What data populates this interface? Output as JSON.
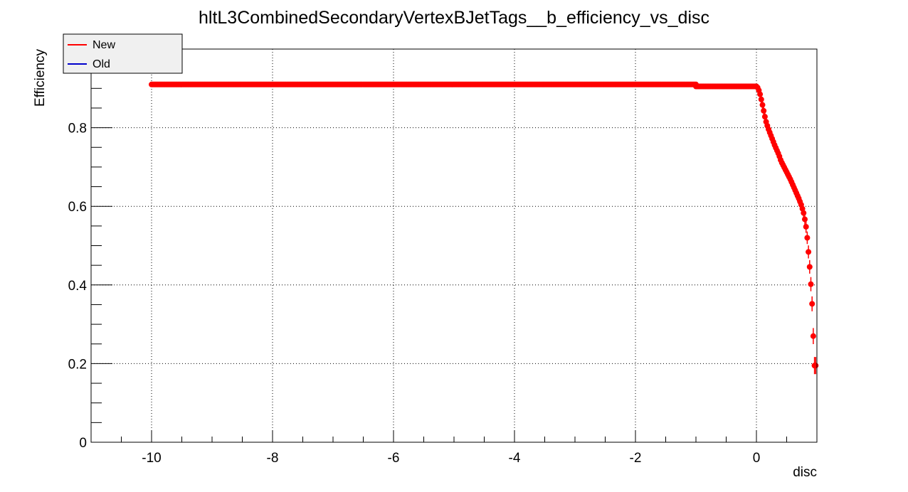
{
  "chart_data": {
    "type": "scatter",
    "title": "hltL3CombinedSecondaryVertexBJetTags__b_efficiency_vs_disc",
    "xlabel": "disc",
    "ylabel": "Efficiency",
    "xlim": [
      -11,
      1
    ],
    "ylim": [
      0,
      1
    ],
    "xticks": [
      -10,
      -8,
      -6,
      -4,
      -2,
      0
    ],
    "xtick_labels": [
      "-10",
      "-8",
      "-6",
      "-4",
      "-2",
      "0"
    ],
    "yticks": [
      0,
      0.2,
      0.4,
      0.6,
      0.8
    ],
    "ytick_labels": [
      "0",
      "0.2",
      "0.4",
      "0.6",
      "0.8"
    ],
    "grid": true,
    "legend": {
      "placement": "top-left",
      "entries": [
        "New",
        "Old"
      ]
    },
    "colors": {
      "New": "#ff0000",
      "Old": "#0000cc"
    },
    "series": [
      {
        "name": "New",
        "plateau_segments": [
          {
            "x_from": -10.0,
            "x_to": -1.0,
            "y": 0.91
          },
          {
            "x_from": -1.0,
            "x_to": 0.0,
            "y": 0.905
          }
        ],
        "x": [
          0.02,
          0.04,
          0.06,
          0.08,
          0.1,
          0.12,
          0.14,
          0.16,
          0.18,
          0.2,
          0.22,
          0.24,
          0.26,
          0.28,
          0.3,
          0.32,
          0.34,
          0.36,
          0.38,
          0.4,
          0.42,
          0.44,
          0.46,
          0.48,
          0.5,
          0.52,
          0.54,
          0.56,
          0.58,
          0.6,
          0.62,
          0.64,
          0.66,
          0.68,
          0.7,
          0.72,
          0.74,
          0.76,
          0.78,
          0.8,
          0.82,
          0.84,
          0.86,
          0.88,
          0.9,
          0.92,
          0.94,
          0.96,
          0.98
        ],
        "y": [
          0.902,
          0.895,
          0.885,
          0.872,
          0.858,
          0.843,
          0.828,
          0.815,
          0.805,
          0.796,
          0.788,
          0.78,
          0.772,
          0.764,
          0.756,
          0.749,
          0.742,
          0.735,
          0.727,
          0.718,
          0.711,
          0.705,
          0.699,
          0.693,
          0.687,
          0.681,
          0.675,
          0.669,
          0.662,
          0.655,
          0.648,
          0.641,
          0.634,
          0.627,
          0.62,
          0.612,
          0.604,
          0.594,
          0.583,
          0.567,
          0.548,
          0.52,
          0.484,
          0.446,
          0.402,
          0.352,
          0.27,
          0.195,
          0.195
        ]
      },
      {
        "name": "Old",
        "x": [],
        "y": []
      }
    ]
  }
}
